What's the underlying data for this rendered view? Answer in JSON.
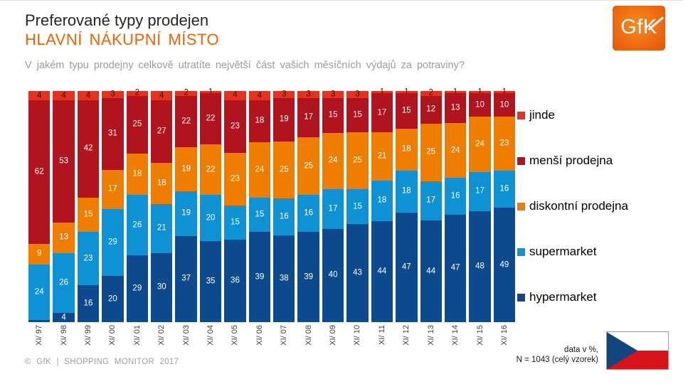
{
  "header": {
    "title": "Preferované typy prodejen",
    "subtitle": "HLAVNÍ NÁKUPNÍ MÍSTO",
    "question": "V jakém typu prodejny celkově utratíte největší část vašich měsíčních výdajů za potraviny?",
    "logo_text": "GfK"
  },
  "chart_data": {
    "type": "bar",
    "stacked": true,
    "unit": "%",
    "ylim": [
      0,
      100
    ],
    "grid": false,
    "legend_position": "right",
    "categories": [
      "XI/ 97",
      "XI/ 98",
      "XI/ 99",
      "XI/ 00",
      "XI/ 01",
      "XI/ 02",
      "XI/ 03",
      "XI/ 04",
      "XI/ 05",
      "XI/ 06",
      "XI/ 07",
      "XI/ 08",
      "XI/ 09",
      "XI/ 10",
      "XI/ 11",
      "XI/ 12",
      "XI/ 13",
      "XI/ 14",
      "XI/ 15",
      "XI/ 16"
    ],
    "series": [
      {
        "key": "hypermarket",
        "name": "hypermarket",
        "color": "#0d4a8d",
        "label_color": "#ffffff",
        "values": [
          1,
          4,
          16,
          20,
          29,
          30,
          37,
          35,
          36,
          39,
          38,
          39,
          40,
          43,
          44,
          47,
          44,
          47,
          48,
          49
        ],
        "labels": [
          "",
          "4",
          "16",
          "20",
          "29",
          "30",
          "37",
          "35",
          "36",
          "39",
          "38",
          "39",
          "40",
          "43",
          "44",
          "47",
          "44",
          "47",
          "48",
          "49"
        ]
      },
      {
        "key": "supermarket",
        "name": "supermarket",
        "color": "#0f92d4",
        "label_color": "#ffffff",
        "values": [
          24,
          26,
          23,
          29,
          26,
          21,
          19,
          20,
          15,
          15,
          16,
          16,
          17,
          15,
          18,
          18,
          17,
          16,
          17,
          16
        ]
      },
      {
        "key": "diskontni-prodejna",
        "name": "diskontní prodejna",
        "color": "#ee7d00",
        "label_color": "#ffffff",
        "values": [
          9,
          13,
          15,
          17,
          18,
          18,
          19,
          22,
          23,
          24,
          25,
          25,
          24,
          25,
          21,
          18,
          25,
          24,
          24,
          23
        ]
      },
      {
        "key": "mensi-prodejna",
        "name": "menší prodejna",
        "color": "#b2141f",
        "label_color": "#ffffff",
        "values": [
          62,
          53,
          42,
          31,
          25,
          27,
          22,
          22,
          23,
          18,
          19,
          17,
          15,
          15,
          17,
          15,
          12,
          13,
          10,
          10
        ]
      },
      {
        "key": "jinde",
        "name": "jinde",
        "color": "#e6321c",
        "label_color": "#1a1a1a",
        "values": [
          4,
          4,
          4,
          3,
          2,
          4,
          2,
          1,
          4,
          4,
          3,
          3,
          3,
          3,
          1,
          1,
          2,
          1,
          1,
          1
        ]
      }
    ]
  },
  "footnote": {
    "line1": "data v %,",
    "line2": "N = 1043 (celý vzorek)"
  },
  "footer": {
    "copyright": "© GfK | SHOPPING MONITOR 2017"
  },
  "flag": {
    "country": "Czech Republic",
    "blue": "#11457e",
    "red": "#d7141a",
    "white": "#ffffff"
  }
}
